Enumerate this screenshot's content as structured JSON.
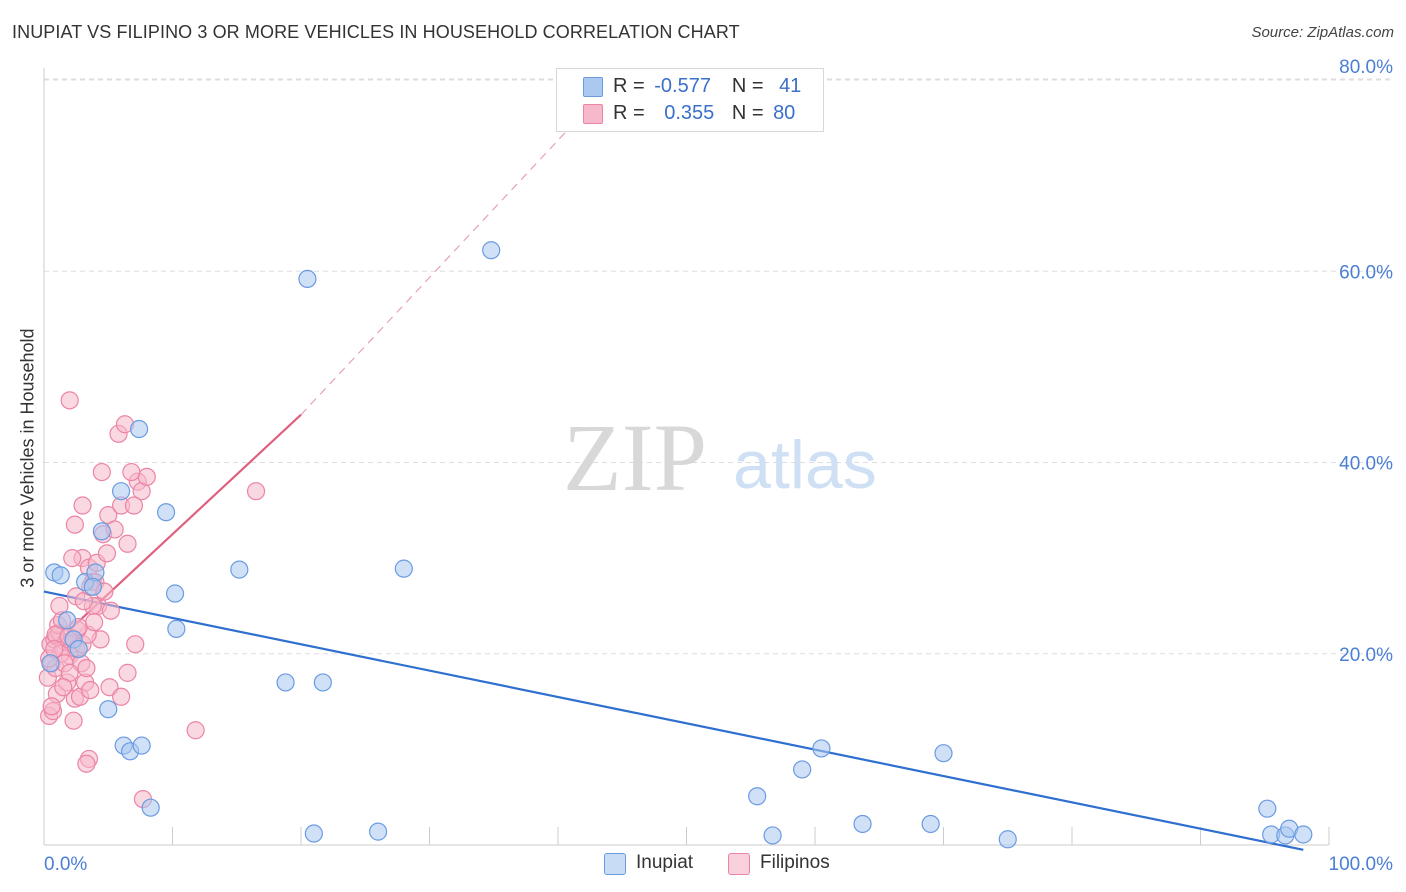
{
  "title": "INUPIAT VS FILIPINO 3 OR MORE VEHICLES IN HOUSEHOLD CORRELATION CHART",
  "source": "Source: ZipAtlas.com",
  "watermark": {
    "zip": "ZIP",
    "atlas": "atlas"
  },
  "legend": {
    "r_label": "R =",
    "n_label": "N =",
    "inupiat": {
      "r": "-0.577",
      "n": "41"
    },
    "filipinos": {
      "r": "0.355",
      "n": "80"
    }
  },
  "colors": {
    "inupiat_fill": "#aac8f0",
    "inupiat_stroke": "#6b9be0",
    "inupiat_line": "#2f6fd0",
    "filipino_fill": "#f6b8cb",
    "filipino_stroke": "#ec84a4",
    "filipino_line": "#e0607f",
    "tick_label": "#4a7fd4",
    "grid": "#dddddd"
  },
  "chart_data": {
    "type": "scatter",
    "title": "INUPIAT VS FILIPINO 3 OR MORE VEHICLES IN HOUSEHOLD CORRELATION CHART",
    "xlabel": "",
    "ylabel": "3 or more Vehicles in Household",
    "xlim": [
      0,
      100
    ],
    "ylim": [
      0,
      80
    ],
    "x_tick_labels": [
      "0.0%",
      "100.0%"
    ],
    "y_ticks": [
      20,
      40,
      60,
      80
    ],
    "y_tick_labels": [
      "20.0%",
      "40.0%",
      "60.0%",
      "80.0%"
    ],
    "grid": true,
    "series": [
      {
        "name": "Inupiat",
        "points": [
          [
            0.8,
            28.5
          ],
          [
            1.3,
            28.2
          ],
          [
            1.8,
            23.5
          ],
          [
            2.3,
            21.5
          ],
          [
            2.7,
            20.5
          ],
          [
            3.2,
            27.5
          ],
          [
            4.0,
            28.5
          ],
          [
            4.5,
            32.8
          ],
          [
            5.0,
            14.2
          ],
          [
            6.2,
            10.4
          ],
          [
            6.7,
            9.8
          ],
          [
            7.4,
            43.5
          ],
          [
            7.6,
            10.4
          ],
          [
            8.3,
            3.9
          ],
          [
            9.5,
            34.8
          ],
          [
            10.2,
            26.3
          ],
          [
            10.3,
            22.6
          ],
          [
            15.2,
            28.8
          ],
          [
            18.8,
            17.0
          ],
          [
            20.5,
            59.2
          ],
          [
            21.0,
            1.2
          ],
          [
            21.7,
            17.0
          ],
          [
            26.0,
            1.4
          ],
          [
            28.0,
            28.9
          ],
          [
            34.8,
            62.2
          ],
          [
            55.5,
            5.1
          ],
          [
            56.7,
            1.0
          ],
          [
            59.0,
            7.9
          ],
          [
            60.5,
            10.1
          ],
          [
            63.7,
            2.2
          ],
          [
            69.0,
            2.2
          ],
          [
            70.0,
            9.6
          ],
          [
            75.0,
            0.6
          ],
          [
            95.2,
            3.8
          ],
          [
            95.5,
            1.1
          ],
          [
            96.6,
            1.0
          ],
          [
            96.9,
            1.7
          ],
          [
            98.0,
            1.1
          ],
          [
            3.8,
            27.0
          ],
          [
            6.0,
            37.0
          ],
          [
            0.5,
            19.0
          ]
        ]
      },
      {
        "name": "Filipinos",
        "points": [
          [
            2.0,
            46.5
          ],
          [
            0.5,
            21.0
          ],
          [
            0.8,
            21.5
          ],
          [
            1.0,
            21.8
          ],
          [
            1.2,
            22.2
          ],
          [
            1.5,
            20.8
          ],
          [
            1.7,
            21.2
          ],
          [
            2.0,
            19.8
          ],
          [
            2.2,
            21.0
          ],
          [
            2.5,
            20.5
          ],
          [
            0.3,
            17.5
          ],
          [
            0.6,
            19.0
          ],
          [
            0.9,
            18.5
          ],
          [
            1.3,
            20.0
          ],
          [
            1.6,
            19.0
          ],
          [
            0.4,
            13.5
          ],
          [
            0.7,
            14.0
          ],
          [
            1.0,
            15.8
          ],
          [
            2.3,
            13.0
          ],
          [
            1.8,
            17.0
          ],
          [
            2.4,
            15.3
          ],
          [
            2.8,
            15.5
          ],
          [
            3.2,
            17.0
          ],
          [
            3.6,
            16.2
          ],
          [
            3.0,
            30.0
          ],
          [
            3.5,
            29.0
          ],
          [
            3.8,
            27.5
          ],
          [
            4.2,
            25.0
          ],
          [
            4.6,
            32.5
          ],
          [
            5.0,
            34.5
          ],
          [
            5.5,
            33.0
          ],
          [
            6.0,
            35.5
          ],
          [
            6.5,
            31.5
          ],
          [
            4.5,
            39.0
          ],
          [
            5.8,
            43.0
          ],
          [
            6.3,
            44.0
          ],
          [
            7.3,
            38.0
          ],
          [
            7.6,
            37.0
          ],
          [
            8.0,
            38.5
          ],
          [
            6.8,
            39.0
          ],
          [
            7.0,
            35.5
          ],
          [
            4.0,
            27.5
          ],
          [
            3.8,
            25.0
          ],
          [
            4.4,
            21.5
          ],
          [
            5.1,
            16.5
          ],
          [
            6.0,
            15.5
          ],
          [
            6.5,
            18.0
          ],
          [
            7.1,
            21.0
          ],
          [
            3.0,
            21.0
          ],
          [
            3.4,
            22.0
          ],
          [
            2.6,
            22.5
          ],
          [
            1.1,
            23.0
          ],
          [
            1.4,
            23.5
          ],
          [
            0.9,
            22.0
          ],
          [
            2.9,
            19.0
          ],
          [
            3.3,
            18.5
          ],
          [
            2.0,
            18.0
          ],
          [
            1.5,
            16.5
          ],
          [
            0.6,
            14.5
          ],
          [
            2.5,
            26.0
          ],
          [
            3.1,
            25.5
          ],
          [
            3.6,
            27.0
          ],
          [
            4.1,
            29.5
          ],
          [
            4.7,
            26.5
          ],
          [
            5.2,
            24.5
          ],
          [
            3.5,
            9.0
          ],
          [
            3.3,
            8.5
          ],
          [
            7.7,
            4.8
          ],
          [
            11.8,
            12.0
          ],
          [
            16.5,
            37.0
          ],
          [
            0.4,
            19.5
          ],
          [
            0.8,
            20.5
          ],
          [
            1.9,
            21.8
          ],
          [
            2.7,
            22.8
          ],
          [
            3.9,
            23.3
          ],
          [
            1.2,
            25.0
          ],
          [
            2.2,
            30.0
          ],
          [
            4.9,
            30.5
          ],
          [
            2.4,
            33.5
          ],
          [
            3.0,
            35.5
          ]
        ]
      }
    ],
    "trendlines": [
      {
        "series": "Inupiat",
        "x": [
          0,
          98
        ],
        "y": [
          26.5,
          -0.5
        ]
      },
      {
        "series": "Filipinos",
        "x": [
          2,
          20
        ],
        "y": [
          22.5,
          45.0
        ],
        "dashed_extension_to": [
          43,
          78
        ]
      }
    ]
  },
  "bottom_legend": [
    {
      "label": "Inupiat"
    },
    {
      "label": "Filipinos"
    }
  ]
}
